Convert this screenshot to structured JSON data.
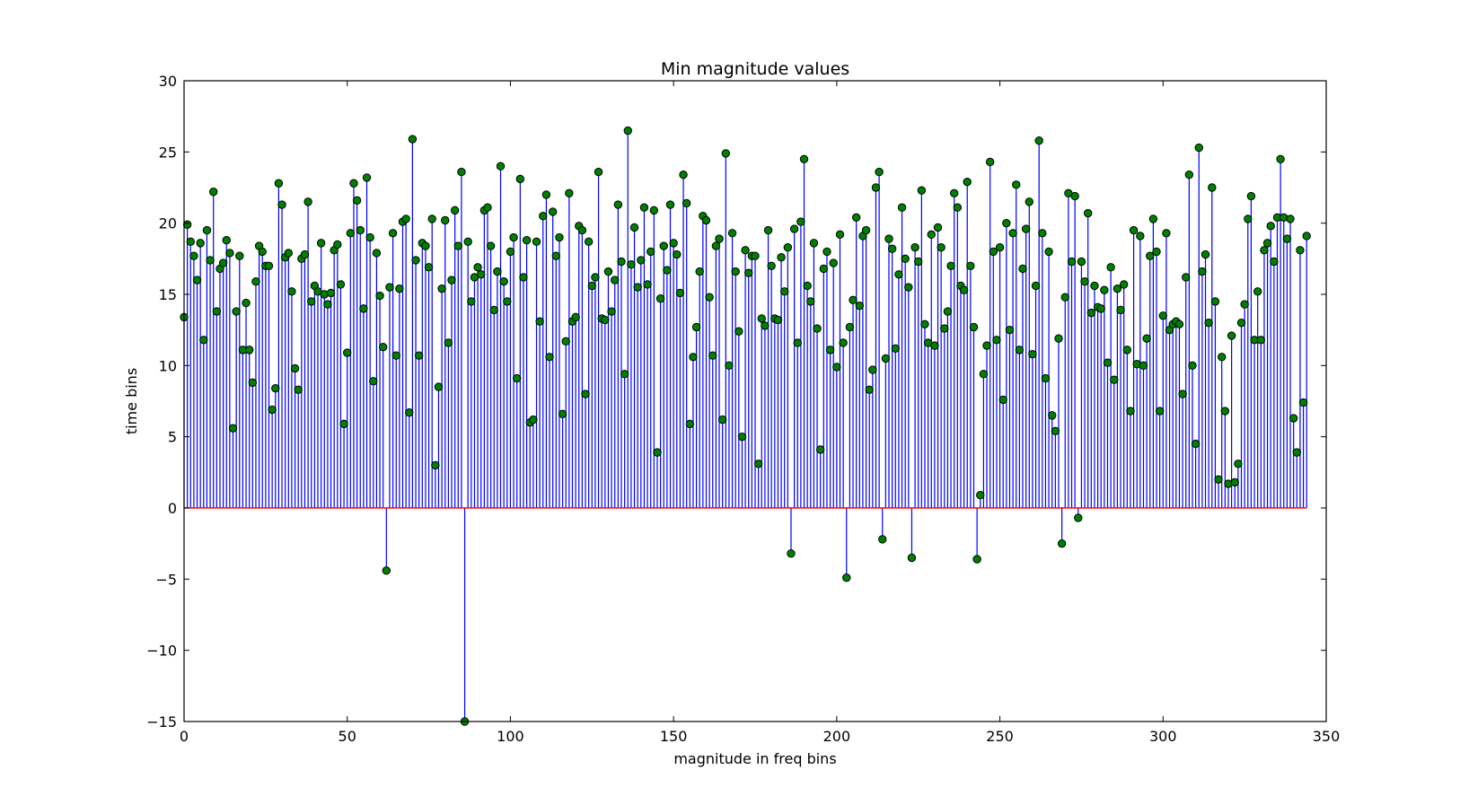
{
  "chart_data": {
    "type": "stem",
    "title": "Min magnitude values",
    "xlabel": "magnitude in freq bins",
    "ylabel": "time bins",
    "xlim": [
      0,
      350
    ],
    "ylim": [
      -15,
      30
    ],
    "xticks": [
      0,
      50,
      100,
      150,
      200,
      250,
      300,
      350
    ],
    "yticks": [
      -15,
      -10,
      -5,
      0,
      5,
      10,
      15,
      20,
      25,
      30
    ],
    "xtick_labels": [
      "0",
      "50",
      "100",
      "150",
      "200",
      "250",
      "300",
      "350"
    ],
    "ytick_labels": [
      "−15",
      "−10",
      "−5",
      "0",
      "5",
      "10",
      "15",
      "20",
      "25",
      "30"
    ],
    "grid": false,
    "colors": {
      "stem": "#0000ff",
      "marker": "#008000",
      "baseline": "#ff0000"
    },
    "x_start": 0,
    "x_step": 1,
    "values": [
      13.4,
      19.9,
      18.7,
      17.7,
      16.0,
      18.6,
      11.8,
      19.5,
      17.4,
      22.2,
      13.8,
      16.8,
      17.2,
      18.8,
      17.9,
      5.6,
      13.8,
      17.7,
      11.1,
      14.4,
      11.1,
      8.8,
      15.9,
      18.4,
      18.0,
      17.0,
      17.0,
      6.9,
      8.4,
      22.8,
      21.3,
      17.6,
      17.9,
      15.2,
      9.8,
      8.3,
      17.5,
      17.8,
      21.5,
      14.5,
      15.6,
      15.2,
      18.6,
      15.0,
      14.3,
      15.1,
      18.1,
      18.5,
      15.7,
      5.9,
      10.9,
      19.3,
      22.8,
      21.6,
      19.5,
      14.0,
      23.2,
      19.0,
      8.9,
      17.9,
      14.9,
      11.3,
      -4.4,
      15.5,
      19.3,
      10.7,
      15.4,
      20.1,
      20.3,
      6.7,
      25.9,
      17.4,
      10.7,
      18.6,
      18.4,
      16.9,
      20.3,
      3.0,
      8.5,
      15.4,
      20.2,
      11.6,
      16.0,
      20.9,
      18.4,
      23.6,
      -15.0,
      18.7,
      14.5,
      16.2,
      16.9,
      16.4,
      20.9,
      21.1,
      18.4,
      13.9,
      16.6,
      24.0,
      15.9,
      14.5,
      18.0,
      19.0,
      9.1,
      23.1,
      16.2,
      18.8,
      6.0,
      6.2,
      18.7,
      13.1,
      20.5,
      22.0,
      10.6,
      20.8,
      17.7,
      19.0,
      6.6,
      11.7,
      22.1,
      13.1,
      13.4,
      19.8,
      19.5,
      8.0,
      18.7,
      15.6,
      16.2,
      23.6,
      13.3,
      13.2,
      16.6,
      13.8,
      16.0,
      21.3,
      17.3,
      9.4,
      26.5,
      17.1,
      19.7,
      15.5,
      17.4,
      21.1,
      15.7,
      18.0,
      20.9,
      3.9,
      14.7,
      18.4,
      16.7,
      21.3,
      18.6,
      17.8,
      15.1,
      23.4,
      21.4,
      5.9,
      10.6,
      12.7,
      16.6,
      20.5,
      20.2,
      14.8,
      10.7,
      18.4,
      18.9,
      6.2,
      24.9,
      10.0,
      19.3,
      16.6,
      12.4,
      5.0,
      18.1,
      16.5,
      17.7,
      17.7,
      3.1,
      13.3,
      12.8,
      19.5,
      17.0,
      13.3,
      13.2,
      17.6,
      15.2,
      18.3,
      -3.2,
      19.6,
      11.6,
      20.1,
      24.5,
      15.6,
      14.5,
      18.6,
      12.6,
      4.1,
      16.8,
      18.0,
      11.1,
      17.2,
      9.9,
      19.2,
      11.6,
      -4.9,
      12.7,
      14.6,
      20.4,
      14.2,
      19.1,
      19.5,
      8.3,
      9.7,
      22.5,
      23.6,
      -2.2,
      10.5,
      18.9,
      18.2,
      11.2,
      16.4,
      21.1,
      17.5,
      15.5,
      -3.5,
      18.3,
      17.3,
      22.3,
      12.9,
      11.6,
      19.2,
      11.4,
      19.7,
      18.3,
      12.6,
      13.8,
      17.0,
      22.1,
      21.1,
      15.6,
      15.3,
      22.9,
      17.0,
      12.7,
      -3.6,
      0.9,
      9.4,
      11.4,
      24.3,
      18.0,
      11.8,
      18.3,
      7.6,
      20.0,
      12.5,
      19.3,
      22.7,
      11.1,
      16.8,
      19.6,
      21.5,
      10.8,
      15.6,
      25.8,
      19.3,
      9.1,
      18.0,
      6.5,
      5.4,
      11.9,
      -2.5,
      14.8,
      22.1,
      17.3,
      21.9,
      -0.7,
      17.3,
      15.9,
      20.7,
      13.7,
      15.6,
      14.1,
      14.0,
      15.3,
      10.2,
      16.9,
      9.0,
      15.4,
      13.9,
      15.7,
      11.1,
      6.8,
      19.5,
      10.1,
      19.1,
      10.0,
      11.9,
      17.7,
      20.3,
      18.0,
      6.8,
      13.5,
      19.3,
      12.5,
      12.9,
      13.1,
      12.9,
      8.0,
      16.2,
      23.4,
      10.0,
      4.5,
      25.3,
      16.6,
      17.8,
      13.0,
      22.5,
      14.5,
      2.0,
      10.6,
      6.8,
      1.7,
      12.1,
      1.8,
      3.1,
      13.0,
      14.3,
      20.3,
      21.9,
      11.8,
      15.2,
      11.8,
      18.1,
      18.6,
      19.8,
      17.3,
      20.4,
      24.5,
      20.4,
      18.9,
      20.3,
      6.3,
      3.9,
      18.1,
      7.4,
      19.1
    ]
  }
}
